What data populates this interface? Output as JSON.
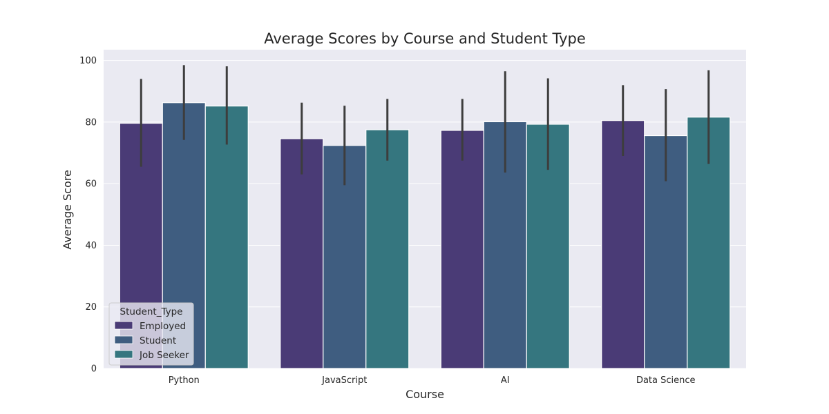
{
  "chart_data": {
    "type": "bar",
    "title": "Average Scores by Course and Student Type",
    "xlabel": "Course",
    "ylabel": "Average Score",
    "categories": [
      "Python",
      "JavaScript",
      "AI",
      "Data Science"
    ],
    "ylim": [
      0,
      103.5
    ],
    "yticks": [
      0,
      20,
      40,
      60,
      80,
      100
    ],
    "grid": true,
    "legend": {
      "title": "Student_Type",
      "placement": "lower-left"
    },
    "series": [
      {
        "name": "Employed",
        "color": "#4a3b76",
        "values": [
          79.6,
          74.6,
          77.3,
          80.5
        ],
        "ci": [
          [
            65.5,
            94.0
          ],
          [
            63.0,
            86.3
          ],
          [
            67.5,
            87.5
          ],
          [
            69.0,
            92.0
          ]
        ]
      },
      {
        "name": "Student",
        "color": "#3f5d80",
        "values": [
          86.3,
          72.4,
          80.1,
          75.6
        ],
        "ci": [
          [
            74.2,
            98.5
          ],
          [
            59.5,
            85.3
          ],
          [
            63.6,
            96.5
          ],
          [
            60.8,
            90.7
          ]
        ]
      },
      {
        "name": "Job Seeker",
        "color": "#35767f",
        "values": [
          85.2,
          77.5,
          79.3,
          81.6
        ],
        "ci": [
          [
            72.7,
            98.1
          ],
          [
            67.5,
            87.5
          ],
          [
            64.5,
            94.2
          ],
          [
            66.4,
            96.8
          ]
        ]
      }
    ]
  }
}
